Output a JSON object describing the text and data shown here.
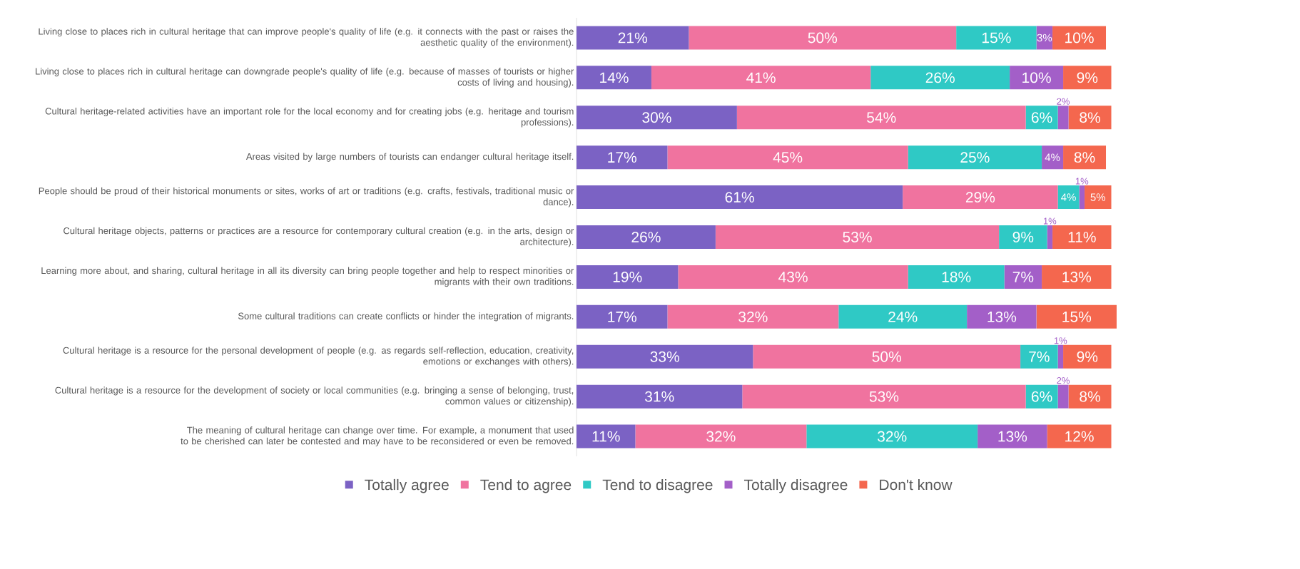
{
  "chart_data": {
    "type": "bar",
    "orientation": "horizontal",
    "stacked": true,
    "legend": "bottom",
    "categories": [
      "Living close to places rich in cultural heritage that can improve people's quality of life (e.g. it connects with the past or raises the aesthetic quality of the environment).",
      "Living close to places rich in cultural heritage can downgrade people's quality of life (e.g. because of masses of tourists or higher costs of living and housing).",
      "Cultural heritage-related activities have an important role for the local economy and for creating jobs (e.g. heritage and tourism professions).",
      "Areas visited by large numbers of tourists can endanger cultural heritage itself.",
      "People should be proud of their historical monuments or sites, works of art or traditions (e.g. crafts, festivals, traditional music or dance).",
      "Cultural heritage objects, patterns or practices are a resource for contemporary cultural creation (e.g. in the arts, design or architecture).",
      "Learning more about, and sharing, cultural heritage in all its diversity can bring people together and help to respect minorities or migrants with their own traditions.",
      "Some cultural traditions can create conflicts or hinder the integration of migrants.",
      "Cultural heritage is a resource for the personal development of people (e.g. as regards self-reflection, education, creativity, emotions or exchanges with others).",
      "Cultural heritage is a resource for the development of society or local communities (e.g. bringing a sense of belonging, trust, common values or citizenship).",
      "The meaning of cultural heritage can change over time. For example, a monument that used to be cherished can later be contested and may have to be reconsidered or even be removed."
    ],
    "series": [
      {
        "name": "Totally agree",
        "color": "#7b62c4",
        "values": [
          21,
          14,
          30,
          17,
          61,
          26,
          19,
          17,
          33,
          31,
          11
        ],
        "value_labels": [
          "21%",
          "14%",
          "30%",
          "17%",
          "61%",
          "26%",
          "19%",
          "17%",
          "33%",
          "31%",
          "11%"
        ]
      },
      {
        "name": "Tend to agree",
        "color": "#f0739f",
        "values": [
          50,
          41,
          54,
          45,
          29,
          53,
          43,
          32,
          50,
          53,
          32
        ],
        "value_labels": [
          "50%",
          "41%",
          "54%",
          "45%",
          "29%",
          "53%",
          "43%",
          "32%",
          "50%",
          "53%",
          "32%"
        ]
      },
      {
        "name": "Tend to disagree",
        "color": "#2fc9c5",
        "values": [
          15,
          26,
          6,
          25,
          4,
          9,
          18,
          24,
          7,
          6,
          32
        ],
        "value_labels": [
          "15%",
          "26%",
          "6%",
          "25%",
          "4%",
          "9%",
          "18%",
          "24%",
          "7%",
          "6%",
          "32%"
        ]
      },
      {
        "name": "Totally disagree",
        "color": "#a35fc8",
        "values": [
          3,
          10,
          2,
          4,
          1,
          1,
          7,
          13,
          1,
          2,
          13
        ],
        "value_labels": [
          "3%",
          "10%",
          "2%",
          "4%",
          "1%",
          "1%",
          "7%",
          "13%",
          "1%",
          "2%",
          "13%"
        ]
      },
      {
        "name": "Don't know",
        "color": "#f4674e",
        "values": [
          10,
          9,
          8,
          8,
          5,
          11,
          13,
          15,
          9,
          8,
          12
        ],
        "value_labels": [
          "10%",
          "9%",
          "8%",
          "8%",
          "5%",
          "11%",
          "13%",
          "15%",
          "9%",
          "8%",
          "12%"
        ]
      }
    ]
  }
}
